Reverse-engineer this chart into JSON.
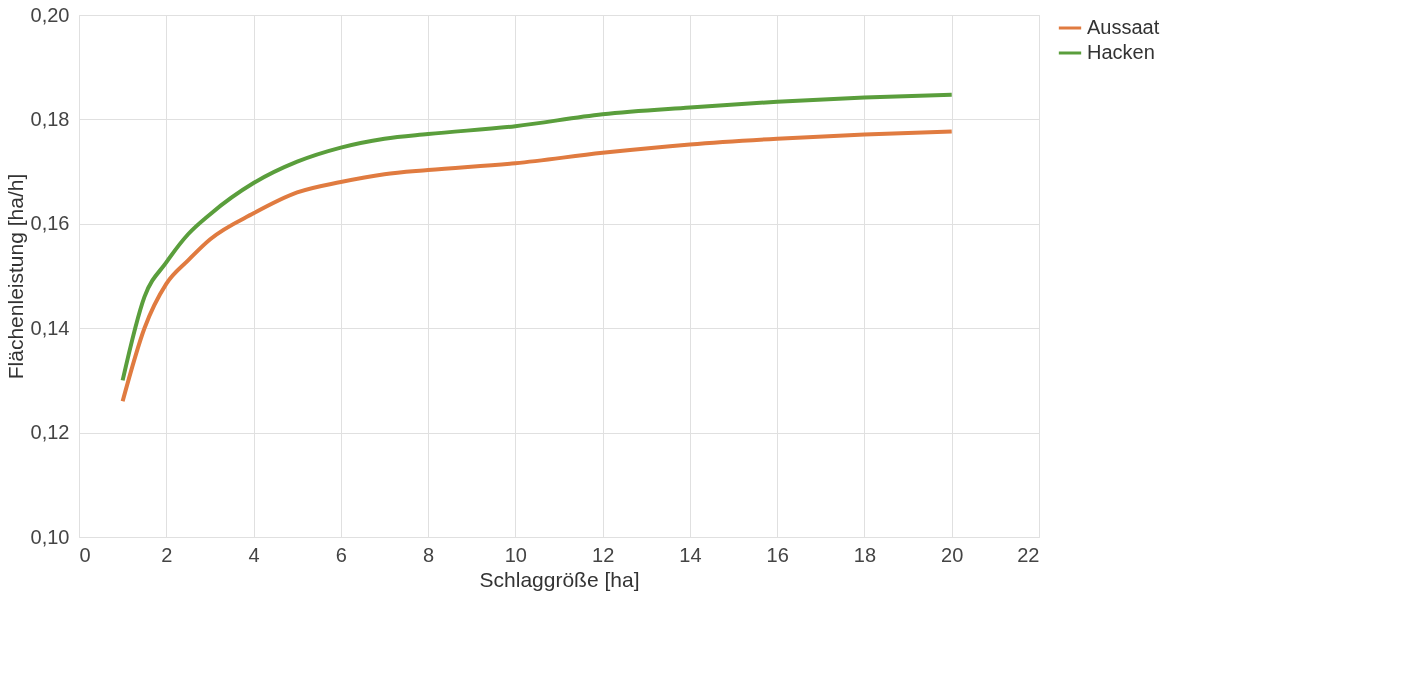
{
  "chart_data": {
    "type": "line",
    "xlabel": "Schlaggröße [ha]",
    "ylabel": "Flächenleistung [ha/h]",
    "x": [
      1,
      1.5,
      2,
      2.5,
      3,
      4,
      5,
      6,
      7,
      8,
      10,
      12,
      14,
      16,
      18,
      20
    ],
    "series": [
      {
        "name": "Aussaat",
        "color": "#e07b40",
        "values": [
          0.126,
          0.14,
          0.1485,
          0.153,
          0.157,
          0.162,
          0.166,
          0.168,
          0.1695,
          0.1703,
          0.1716,
          0.1736,
          0.1752,
          0.1763,
          0.1771,
          0.1777
        ]
      },
      {
        "name": "Hacken",
        "color": "#5a9e3c",
        "values": [
          0.13,
          0.146,
          0.1526,
          0.158,
          0.1618,
          0.1678,
          0.1719,
          0.1746,
          0.1763,
          0.1772,
          0.1787,
          0.181,
          0.1823,
          0.1834,
          0.1842,
          0.1847
        ]
      }
    ],
    "xlim": [
      0,
      22
    ],
    "xticks": [
      0,
      2,
      4,
      6,
      8,
      10,
      12,
      14,
      16,
      18,
      20,
      22
    ],
    "ylim": [
      0.1,
      0.2
    ],
    "yticks": [
      {
        "value": 0.1,
        "label": "0,10"
      },
      {
        "value": 0.12,
        "label": "0,12"
      },
      {
        "value": 0.14,
        "label": "0,14"
      },
      {
        "value": 0.16,
        "label": "0,16"
      },
      {
        "value": 0.18,
        "label": "0,18"
      },
      {
        "value": 0.2,
        "label": "0,20"
      }
    ],
    "grid": true,
    "legend": "right",
    "marker": "none",
    "line_style": "solid"
  }
}
